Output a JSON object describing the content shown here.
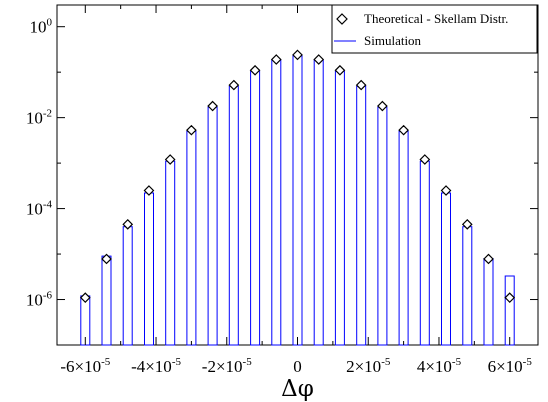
{
  "chart_data": {
    "type": "bar",
    "xlabel": "Δφ",
    "ylabel": "",
    "x_scale": "linear",
    "y_scale": "log",
    "xlim": [
      -6.8e-05,
      6.8e-05
    ],
    "ylim": [
      1e-07,
      3.0
    ],
    "grid": false,
    "legend_position": "top-right",
    "x_ticks": [
      {
        "value": -6e-05,
        "mantissa": "-6×10",
        "exp": "-5"
      },
      {
        "value": -4e-05,
        "mantissa": "-4×10",
        "exp": "-5"
      },
      {
        "value": -2e-05,
        "mantissa": "-2×10",
        "exp": "-5"
      },
      {
        "value": 0,
        "mantissa": "0",
        "exp": ""
      },
      {
        "value": 2e-05,
        "mantissa": "2×10",
        "exp": "-5"
      },
      {
        "value": 4e-05,
        "mantissa": "4×10",
        "exp": "-5"
      },
      {
        "value": 6e-05,
        "mantissa": "6×10",
        "exp": "-5"
      }
    ],
    "y_ticks": [
      {
        "value": 1,
        "base": "10",
        "exp": "0"
      },
      {
        "value": 0.01,
        "base": "10",
        "exp": "-2"
      },
      {
        "value": 0.0001,
        "base": "10",
        "exp": "-4"
      },
      {
        "value": 1e-06,
        "base": "10",
        "exp": "-6"
      }
    ],
    "x": [
      -6e-05,
      -5.4e-05,
      -4.8e-05,
      -4.2e-05,
      -3.6e-05,
      -3e-05,
      -2.4e-05,
      -1.8e-05,
      -1.2e-05,
      -6e-06,
      0,
      6e-06,
      1.2e-05,
      1.8e-05,
      2.4e-05,
      3e-05,
      3.6e-05,
      4.2e-05,
      4.8e-05,
      5.4e-05,
      6e-05
    ],
    "series": [
      {
        "name": "Theoretical - Skellam Distr.",
        "marker": "diamond",
        "color": "#000000",
        "values": [
          1.1e-06,
          7.8e-06,
          4.5e-05,
          0.00025,
          0.0012,
          0.0053,
          0.018,
          0.052,
          0.11,
          0.19,
          0.24,
          0.19,
          0.11,
          0.052,
          0.018,
          0.0053,
          0.0012,
          0.00025,
          4.5e-05,
          7.8e-06,
          1.1e-06
        ]
      },
      {
        "name": "Simulation",
        "style": "histogram",
        "color": "#0000ff",
        "values": [
          1.2e-06,
          9e-06,
          4e-05,
          0.00022,
          0.0011,
          0.005,
          0.017,
          0.049,
          0.105,
          0.185,
          0.23,
          0.185,
          0.105,
          0.049,
          0.017,
          0.005,
          0.0011,
          0.00022,
          4e-05,
          8e-06,
          3.3e-06
        ]
      }
    ]
  }
}
